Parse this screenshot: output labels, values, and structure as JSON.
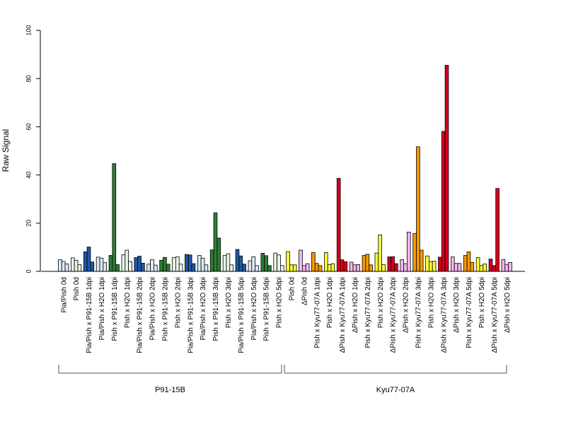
{
  "chart_data": {
    "type": "bar",
    "ylabel": "Raw Signal",
    "ylim": [
      0,
      100
    ],
    "yticks": [
      0,
      20,
      40,
      60,
      80,
      100
    ],
    "groups": [
      {
        "label": "Pia/Pish 0d",
        "color": "#dce9f5",
        "values": [
          4.9,
          4.1,
          3.1
        ]
      },
      {
        "label": "Pish 0d",
        "color": "#e9f4e5",
        "values": [
          5.6,
          4.6,
          2.8
        ]
      },
      {
        "label": "Pia/Pish x P91-15B 1dpi",
        "color": "#1f5aa6",
        "values": [
          8.1,
          10.1,
          3.9
        ]
      },
      {
        "label": "Pia/Pish x H2O 1dpi",
        "color": "#dce9f5",
        "values": [
          5.9,
          5.5,
          3.6
        ]
      },
      {
        "label": "Pish x P91-15B 1dpi",
        "color": "#2e7d36",
        "values": [
          6.6,
          44.7,
          2.8
        ]
      },
      {
        "label": "Pish x H2O 1dpi",
        "color": "#e9f4e5",
        "values": [
          6.9,
          8.8,
          4.1
        ]
      },
      {
        "label": "Pia/Pish x P91-15B 2dpi",
        "color": "#1f5aa6",
        "values": [
          5.7,
          6.3,
          3.4
        ]
      },
      {
        "label": "Pia/Pish x H2O 2dpi",
        "color": "#dce9f5",
        "values": [
          3.0,
          4.9,
          2.6
        ]
      },
      {
        "label": "Pish x P91-15B 2dpi",
        "color": "#2e7d36",
        "values": [
          4.6,
          5.8,
          3.0
        ]
      },
      {
        "label": "Pish x H2O 2dpi",
        "color": "#e9f4e5",
        "values": [
          5.7,
          6.0,
          3.0
        ]
      },
      {
        "label": "Pia/Pish x P91-15B 3dpi",
        "color": "#1f5aa6",
        "values": [
          7.0,
          6.8,
          3.2
        ]
      },
      {
        "label": "Pia/Pish x H2O 3dpi",
        "color": "#dce9f5",
        "values": [
          6.6,
          5.4,
          2.7
        ]
      },
      {
        "label": "Pish x P91-15B 3dpi",
        "color": "#2e7d36",
        "values": [
          8.9,
          24.3,
          13.8
        ]
      },
      {
        "label": "Pish x H2O 3dpi",
        "color": "#e9f4e5",
        "values": [
          6.6,
          7.3,
          2.7
        ]
      },
      {
        "label": "Pia/Pish x P91-15B 5dpi",
        "color": "#1f5aa6",
        "values": [
          9.1,
          6.4,
          3.0
        ]
      },
      {
        "label": "Pia/Pish x H2O 5dpi",
        "color": "#dce9f5",
        "values": [
          4.4,
          6.1,
          2.4
        ]
      },
      {
        "label": "Pish x P91-15B 5dpi",
        "color": "#2e7d36",
        "values": [
          7.5,
          6.5,
          2.4
        ]
      },
      {
        "label": "Pish x H2O 5dpi",
        "color": "#e9f4e5",
        "values": [
          7.6,
          6.8,
          2.4
        ]
      },
      {
        "label": "Pish 0d",
        "color": "#ffff33",
        "values": [
          8.2,
          2.7,
          2.7
        ]
      },
      {
        "label": "ΔPish 0d",
        "color": "#f5b6ee",
        "values": [
          8.8,
          2.4,
          3.2
        ]
      },
      {
        "label": "Pish x Kyu77-07A 1dpi",
        "color": "#f59a00",
        "values": [
          7.8,
          3.3,
          2.4
        ]
      },
      {
        "label": "Pish x H2O 1dpi",
        "color": "#ffff33",
        "values": [
          7.8,
          2.8,
          3.2
        ]
      },
      {
        "label": "ΔPish x Kyu77-07A 1dpi",
        "color": "#d7001c",
        "values": [
          38.6,
          4.8,
          4.0
        ]
      },
      {
        "label": "ΔPish x H2O 1dpi",
        "color": "#f5b6ee",
        "values": [
          3.8,
          2.7,
          2.8
        ]
      },
      {
        "label": "Pish x Kyu77-07A 2dpi",
        "color": "#f59a00",
        "values": [
          6.6,
          7.1,
          2.7
        ]
      },
      {
        "label": "Pish x H2O 2dpi",
        "color": "#ffff33",
        "values": [
          7.6,
          15.1,
          2.8
        ]
      },
      {
        "label": "ΔPish x Kyu77-07A 2dpi",
        "color": "#d7001c",
        "values": [
          6.0,
          6.1,
          3.2
        ]
      },
      {
        "label": "ΔPish x H2O 2dpi",
        "color": "#f5b6ee",
        "values": [
          4.9,
          3.2,
          16.3
        ]
      },
      {
        "label": "Pish x Kyu77-07A 3dpi",
        "color": "#f59a00",
        "values": [
          15.7,
          51.7,
          8.8
        ]
      },
      {
        "label": "Pish x H2O 3dpi",
        "color": "#ffff33",
        "values": [
          6.4,
          4.1,
          4.2
        ]
      },
      {
        "label": "ΔPish x Kyu77-07A 3dpi",
        "color": "#d7001c",
        "values": [
          5.9,
          58.1,
          85.5
        ]
      },
      {
        "label": "ΔPish x H2O 3dpi",
        "color": "#f5b6ee",
        "values": [
          6.0,
          3.3,
          3.3
        ]
      },
      {
        "label": "Pish x Kyu77-07A 5dpi",
        "color": "#f59a00",
        "values": [
          6.6,
          8.1,
          3.7
        ]
      },
      {
        "label": "Pish x H2O 5dpi",
        "color": "#ffff33",
        "values": [
          5.7,
          2.4,
          3.1
        ]
      },
      {
        "label": "ΔPish x Kyu77-07A 5dpi",
        "color": "#d7001c",
        "values": [
          5.1,
          2.4,
          34.4
        ]
      },
      {
        "label": "ΔPish x H2O 5dpi",
        "color": "#f5b6ee",
        "values": [
          4.9,
          2.9,
          3.7
        ]
      }
    ],
    "brackets": [
      {
        "label": "P91-15B",
        "first_group": 0,
        "last_group": 17
      },
      {
        "label": "Kyu77-07A",
        "first_group": 18,
        "last_group": 35
      }
    ],
    "legend": "none",
    "grid": false
  }
}
